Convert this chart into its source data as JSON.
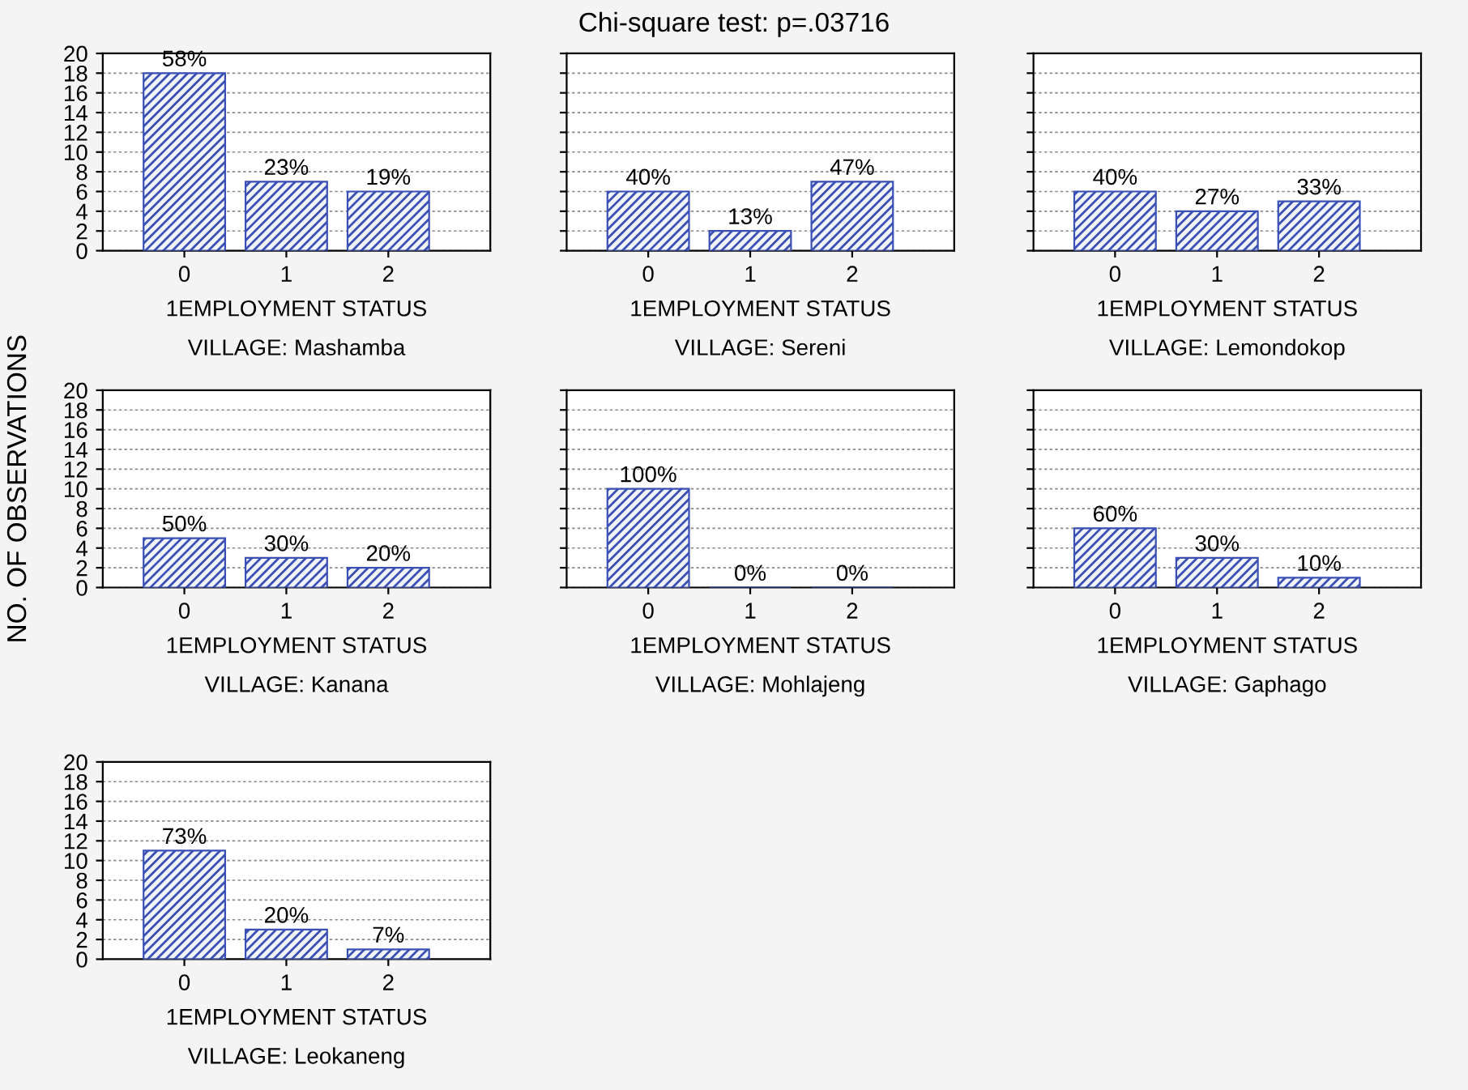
{
  "chart_data": [
    {
      "type": "other",
      "title": "Chi-square test: p=.03716"
    },
    {
      "type": "bar",
      "subtitle": "VILLAGE: Mashamba",
      "xlabel": "1EMPLOYMENT STATUS",
      "categories": [
        "0",
        "1",
        "2"
      ],
      "values": [
        18,
        7,
        6
      ],
      "annotations": [
        {
          "text": "58%",
          "x": "0",
          "y": 18
        },
        {
          "text": "23%",
          "x": "1",
          "y": 7
        },
        {
          "text": "19%",
          "x": "2",
          "y": 6
        }
      ],
      "color": "#3a50b4",
      "ylim": [
        0,
        20
      ],
      "yticks": [
        0,
        2,
        4,
        6,
        8,
        10,
        12,
        14,
        16,
        18,
        20
      ],
      "grid": "y"
    },
    {
      "type": "bar",
      "subtitle": "VILLAGE: Sereni",
      "xlabel": "1EMPLOYMENT STATUS",
      "categories": [
        "0",
        "1",
        "2"
      ],
      "values": [
        6,
        2,
        7
      ],
      "annotations": [
        {
          "text": "40%",
          "x": "0",
          "y": 6
        },
        {
          "text": "13%",
          "x": "1",
          "y": 2
        },
        {
          "text": "47%",
          "x": "2",
          "y": 7
        }
      ],
      "color": "#3a50b4",
      "ylim": [
        0,
        20
      ],
      "yticks": [
        0,
        2,
        4,
        6,
        8,
        10,
        12,
        14,
        16,
        18,
        20
      ],
      "grid": "y",
      "tick_labels": "x"
    },
    {
      "type": "bar",
      "subtitle": "VILLAGE: Lemondokop",
      "xlabel": "1EMPLOYMENT STATUS",
      "categories": [
        "0",
        "1",
        "2"
      ],
      "values": [
        6,
        4,
        5
      ],
      "annotations": [
        {
          "text": "40%",
          "x": "0",
          "y": 6
        },
        {
          "text": "27%",
          "x": "1",
          "y": 4
        },
        {
          "text": "33%",
          "x": "2",
          "y": 5
        }
      ],
      "color": "#3a50b4",
      "ylim": [
        0,
        20
      ],
      "yticks": [
        0,
        2,
        4,
        6,
        8,
        10,
        12,
        14,
        16,
        18,
        20
      ],
      "grid": "y",
      "tick_labels": "x"
    },
    {
      "type": "bar",
      "subtitle": "VILLAGE: Kanana",
      "xlabel": "1EMPLOYMENT STATUS",
      "ylabel": "NO. OF OBSERVATIONS",
      "categories": [
        "0",
        "1",
        "2"
      ],
      "values": [
        5,
        3,
        2
      ],
      "annotations": [
        {
          "text": "50%",
          "x": "0",
          "y": 5
        },
        {
          "text": "30%",
          "x": "1",
          "y": 3
        },
        {
          "text": "20%",
          "x": "2",
          "y": 2
        }
      ],
      "color": "#3a50b4",
      "ylim": [
        0,
        20
      ],
      "yticks": [
        0,
        2,
        4,
        6,
        8,
        10,
        12,
        14,
        16,
        18,
        20
      ],
      "grid": "y"
    },
    {
      "type": "bar",
      "subtitle": "VILLAGE: Mohlajeng",
      "xlabel": "1EMPLOYMENT STATUS",
      "categories": [
        "0",
        "1",
        "2"
      ],
      "values": [
        10,
        0,
        0
      ],
      "annotations": [
        {
          "text": "100%",
          "x": "0",
          "y": 10
        },
        {
          "text": "0%",
          "x": "1",
          "y": 0
        },
        {
          "text": "0%",
          "x": "2",
          "y": 0
        }
      ],
      "color": "#3a50b4",
      "ylim": [
        0,
        20
      ],
      "yticks": [
        0,
        2,
        4,
        6,
        8,
        10,
        12,
        14,
        16,
        18,
        20
      ],
      "grid": "y",
      "tick_labels": "x"
    },
    {
      "type": "bar",
      "subtitle": "VILLAGE: Gaphago",
      "xlabel": "1EMPLOYMENT STATUS",
      "categories": [
        "0",
        "1",
        "2"
      ],
      "values": [
        6,
        3,
        1
      ],
      "annotations": [
        {
          "text": "60%",
          "x": "0",
          "y": 6
        },
        {
          "text": "30%",
          "x": "1",
          "y": 3
        },
        {
          "text": "10%",
          "x": "2",
          "y": 1
        }
      ],
      "color": "#3a50b4",
      "ylim": [
        0,
        20
      ],
      "yticks": [
        0,
        2,
        4,
        6,
        8,
        10,
        12,
        14,
        16,
        18,
        20
      ],
      "grid": "y",
      "tick_labels": "x"
    },
    {
      "type": "bar",
      "subtitle": "VILLAGE: Leokaneng",
      "xlabel": "1EMPLOYMENT STATUS",
      "categories": [
        "0",
        "1",
        "2"
      ],
      "values": [
        11,
        3,
        1
      ],
      "annotations": [
        {
          "text": "73%",
          "x": "0",
          "y": 11
        },
        {
          "text": "20%",
          "x": "1",
          "y": 3
        },
        {
          "text": "7%",
          "x": "2",
          "y": 1
        }
      ],
      "color": "#3a50b4",
      "ylim": [
        0,
        20
      ],
      "yticks": [
        0,
        2,
        4,
        6,
        8,
        10,
        12,
        14,
        16,
        18,
        20
      ],
      "grid": "y"
    }
  ]
}
